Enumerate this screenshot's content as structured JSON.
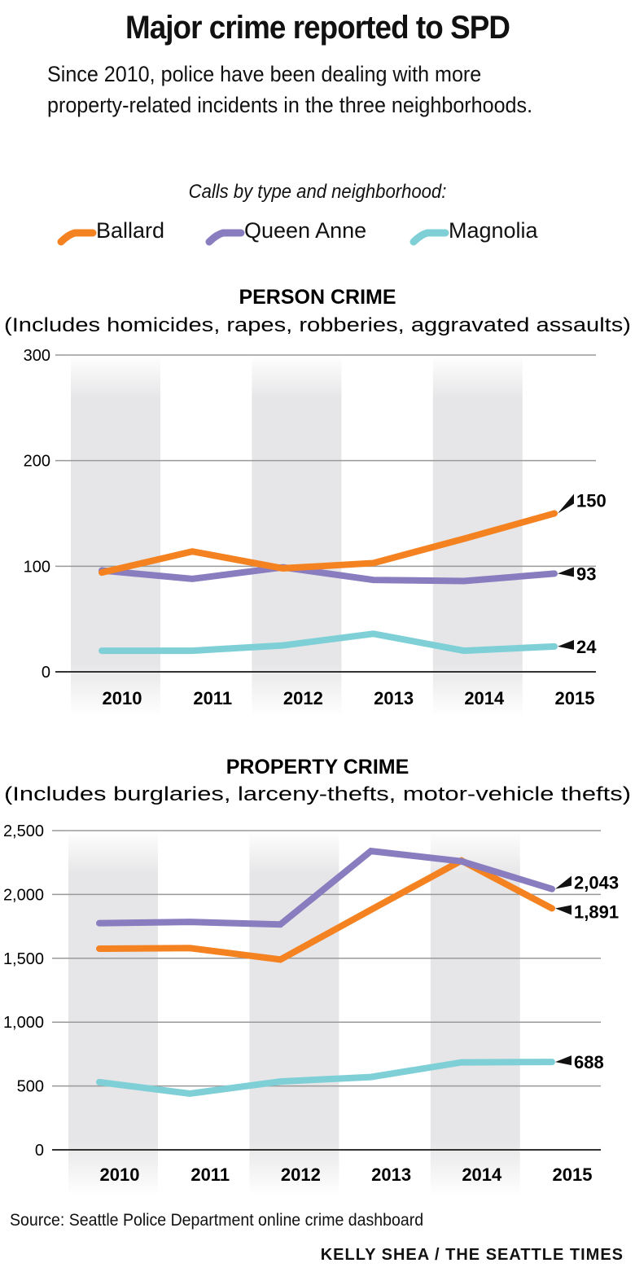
{
  "header": {
    "title": "Major crime reported to SPD",
    "subtitle": "Since 2010, police have been dealing with more property-related incidents in the three neighborhoods.",
    "calls_by": "Calls by type and neighborhood:"
  },
  "legend": [
    {
      "name": "Ballard",
      "color": "#f58220"
    },
    {
      "name": "Queen Anne",
      "color": "#8a7dbf"
    },
    {
      "name": "Magnolia",
      "color": "#7fd0d6"
    }
  ],
  "chart_data": [
    {
      "type": "line",
      "title": "PERSON CRIME",
      "subtitle": "(Includes homicides, rapes, robberies, aggravated assaults)",
      "x": [
        "2010",
        "2011",
        "2012",
        "2013",
        "2014",
        "2015"
      ],
      "ylim": [
        0,
        300
      ],
      "yticks": [
        0,
        100,
        200,
        300
      ],
      "ytick_labels": [
        "0",
        "100",
        "200",
        "300"
      ],
      "grid": true,
      "series": [
        {
          "name": "Ballard",
          "color": "#f58220",
          "values": [
            94,
            114,
            98,
            103,
            126,
            150
          ],
          "end_label": "150"
        },
        {
          "name": "Queen Anne",
          "color": "#8a7dbf",
          "values": [
            96,
            88,
            99,
            87,
            86,
            93
          ],
          "end_label": "93"
        },
        {
          "name": "Magnolia",
          "color": "#7fd0d6",
          "values": [
            20,
            20,
            25,
            36,
            20,
            24
          ],
          "end_label": "24"
        }
      ]
    },
    {
      "type": "line",
      "title": "PROPERTY CRIME",
      "subtitle": "(Includes burglaries, larceny-thefts, motor-vehicle thefts)",
      "x": [
        "2010",
        "2011",
        "2012",
        "2013",
        "2014",
        "2015"
      ],
      "ylim": [
        0,
        2500
      ],
      "yticks": [
        0,
        500,
        1000,
        1500,
        2000,
        2500
      ],
      "ytick_labels": [
        "0",
        "500",
        "1,000",
        "1,500",
        "2,000",
        "2,500"
      ],
      "grid": true,
      "series": [
        {
          "name": "Ballard",
          "color": "#f58220",
          "values": [
            1575,
            1580,
            1490,
            1880,
            2265,
            1891
          ],
          "end_label": "1,891"
        },
        {
          "name": "Queen Anne",
          "color": "#8a7dbf",
          "values": [
            1775,
            1785,
            1765,
            2340,
            2260,
            2043
          ],
          "end_label": "2,043"
        },
        {
          "name": "Magnolia",
          "color": "#7fd0d6",
          "values": [
            530,
            440,
            535,
            570,
            685,
            688
          ],
          "end_label": "688"
        }
      ]
    }
  ],
  "footer": {
    "source": "Source: Seattle Police Department online crime dashboard",
    "credit": "KELLY SHEA / THE SEATTLE TIMES"
  }
}
